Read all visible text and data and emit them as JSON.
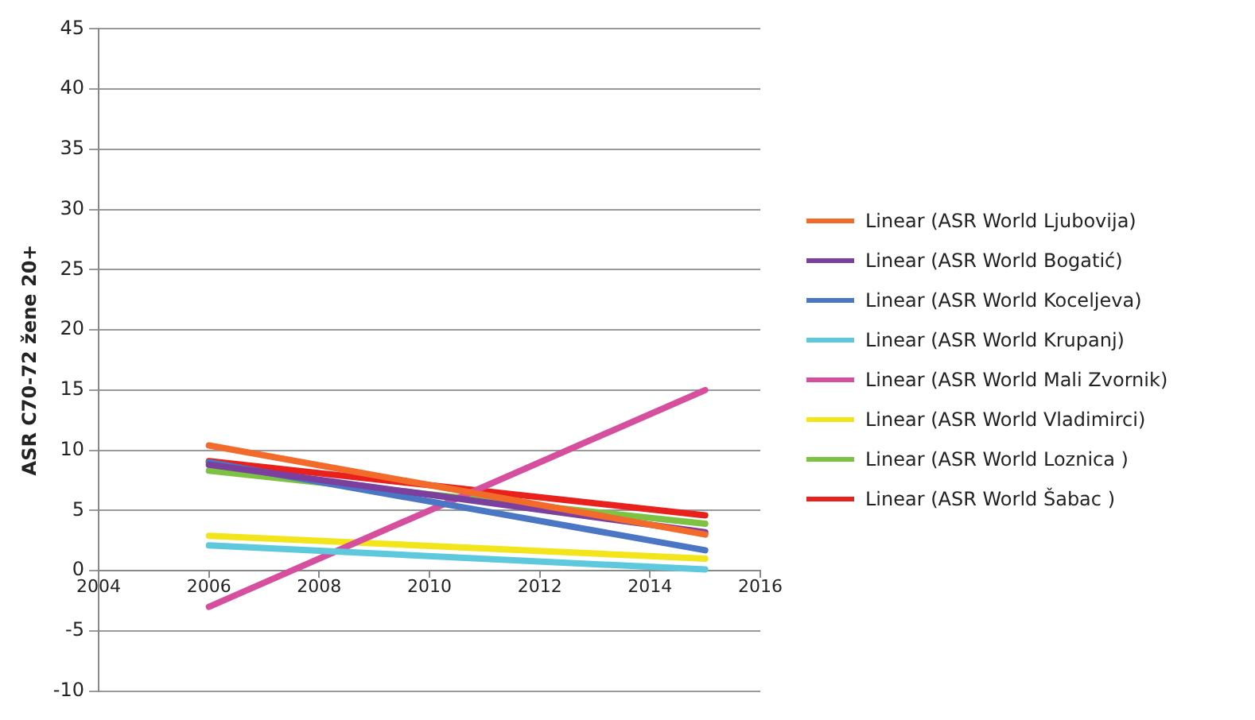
{
  "chart_data": {
    "type": "line",
    "ylabel": "ASR C70-72 žene 20+",
    "x": [
      2006,
      2015
    ],
    "xlim": [
      2004,
      2016
    ],
    "xticks": [
      2004,
      2006,
      2008,
      2010,
      2012,
      2014,
      2016
    ],
    "ylim": [
      -10,
      45
    ],
    "yticks": [
      -10,
      -5,
      0,
      5,
      10,
      15,
      20,
      25,
      30,
      35,
      40,
      45
    ],
    "grid": "y",
    "legend": "right",
    "marker": "none",
    "line_style": "solid",
    "series": [
      {
        "name": "Linear (ASR World Ljubovija)",
        "color": "#f26b2a",
        "values": [
          10.4,
          3.0
        ]
      },
      {
        "name": "Linear (ASR World Bogatić)",
        "color": "#7b3f9e",
        "values": [
          8.8,
          3.2
        ]
      },
      {
        "name": "Linear (ASR World Koceljeva)",
        "color": "#4a76c4",
        "values": [
          9.0,
          1.7
        ]
      },
      {
        "name": "Linear (ASR World Krupanj)",
        "color": "#5ec8dc",
        "values": [
          2.1,
          0.1
        ]
      },
      {
        "name": "Linear (ASR World Mali Zvornik)",
        "color": "#d64f9e",
        "values": [
          -3,
          15
        ]
      },
      {
        "name": "Linear (ASR World Vladimirci)",
        "color": "#f2e51c",
        "values": [
          2.9,
          1.0
        ]
      },
      {
        "name": "Linear (ASR World Loznica )",
        "color": "#7dc242",
        "values": [
          8.3,
          3.9
        ]
      },
      {
        "name": "Linear (ASR World Šabac )",
        "color": "#e8211c",
        "values": [
          9.1,
          4.6
        ]
      }
    ]
  }
}
